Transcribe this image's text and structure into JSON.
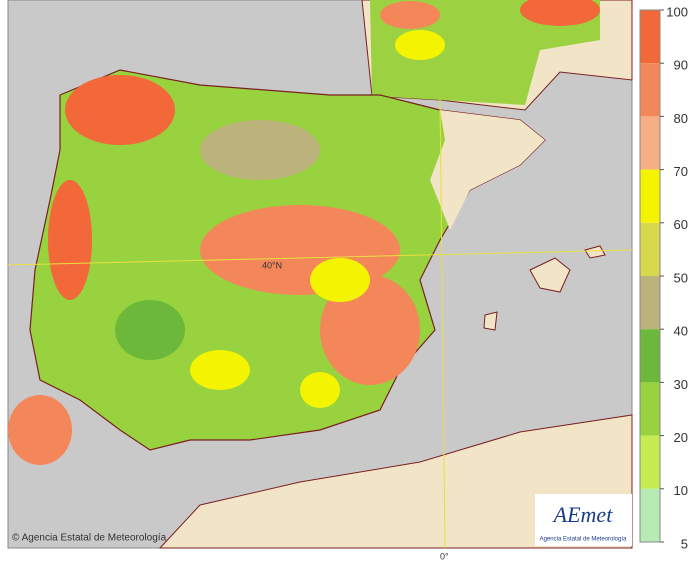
{
  "map": {
    "colorbar": {
      "ticks": [
        100,
        90,
        80,
        70,
        60,
        50,
        40,
        30,
        20,
        10,
        5
      ],
      "colors": [
        "#f26838",
        "#f4875a",
        "#f6ae86",
        "#f4f400",
        "#d8d84e",
        "#bbb27c",
        "#6cb83a",
        "#98d23e",
        "#c6ec52",
        "#b6ecb4"
      ]
    },
    "labels": {
      "latitude": "40°N",
      "longitude": "0°"
    },
    "credit": "© Agencia Estatal de Meteorología",
    "logo": {
      "name": "AEmet",
      "subtitle": "Agencia Estatal de Meteorología"
    }
  }
}
